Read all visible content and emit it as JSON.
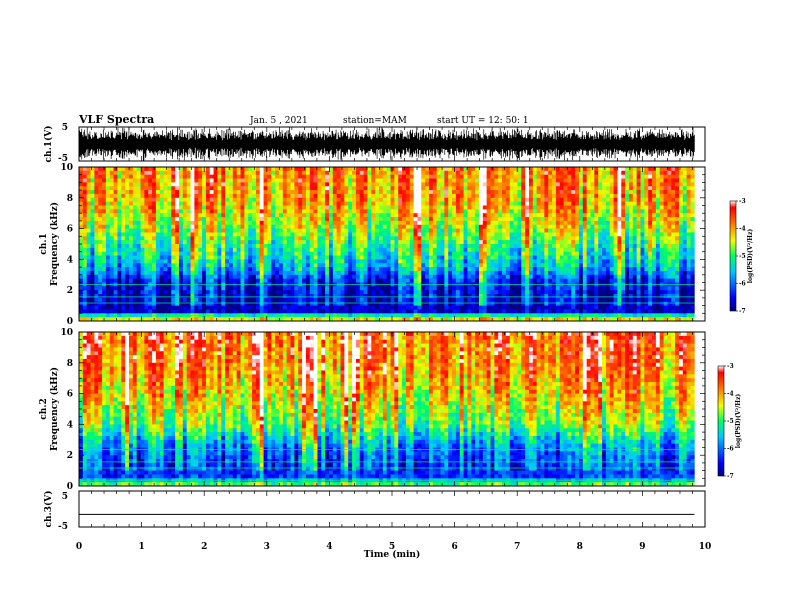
{
  "header": {
    "title": "VLF Spectra",
    "date": "Jan. 5 , 2021",
    "station": "station=MAM",
    "start": "start UT = 12: 50: 1"
  },
  "chart_data": [
    {
      "type": "line",
      "panel": "waveform-ch1",
      "ylabel": "ch.1(V)",
      "ylim": [
        -5,
        5
      ],
      "yticks": [
        "5",
        "-5"
      ],
      "xlim": [
        0,
        10
      ],
      "description_values": "dense broadband waveform between about -5 and 5 V"
    },
    {
      "type": "heatmap",
      "panel": "spectrogram-ch1",
      "ylabel_line1": "ch.1",
      "ylabel_line2": "Frequency (kHz)",
      "ylim": [
        0,
        10
      ],
      "yticks": [
        "0",
        "2",
        "4",
        "6",
        "8",
        "10"
      ],
      "xlim": [
        0,
        9.83
      ],
      "colorbar": {
        "label": "log(PSD)(V²/Hz)",
        "range": [
          -7,
          -3
        ],
        "ticks": [
          "-3",
          "-4",
          "-5",
          "-6",
          "-7"
        ]
      },
      "profile": [
        {
          "f": 0.0,
          "level": 0.72
        },
        {
          "f": 0.3,
          "level": 0.55
        },
        {
          "f": 0.6,
          "level": 0.06
        },
        {
          "f": 1.5,
          "level": 0.08
        },
        {
          "f": 2.6,
          "level": 0.14
        },
        {
          "f": 3.5,
          "level": 0.35
        },
        {
          "f": 5.0,
          "level": 0.5
        },
        {
          "f": 6.5,
          "level": 0.64
        },
        {
          "f": 8.0,
          "level": 0.74
        },
        {
          "f": 10.0,
          "level": 0.78
        }
      ]
    },
    {
      "type": "heatmap",
      "panel": "spectrogram-ch2",
      "ylabel_line1": "ch.2",
      "ylabel_line2": "Frequency (kHz)",
      "ylim": [
        0,
        10
      ],
      "yticks": [
        "0",
        "2",
        "4",
        "6",
        "8",
        "10"
      ],
      "xlim": [
        0,
        9.83
      ],
      "colorbar": {
        "label": "log(PSD)(V²/Hz)",
        "range": [
          -7,
          -3
        ],
        "ticks": [
          "-3",
          "-4",
          "-5",
          "-6",
          "-7"
        ]
      },
      "profile": [
        {
          "f": 0.0,
          "level": 0.6
        },
        {
          "f": 0.6,
          "level": 0.18
        },
        {
          "f": 1.5,
          "level": 0.2
        },
        {
          "f": 2.6,
          "level": 0.3
        },
        {
          "f": 4.0,
          "level": 0.55
        },
        {
          "f": 6.0,
          "level": 0.7
        },
        {
          "f": 8.0,
          "level": 0.8
        },
        {
          "f": 10.0,
          "level": 0.84
        }
      ]
    },
    {
      "type": "line",
      "panel": "waveform-ch3",
      "ylabel": "ch.3(V)",
      "ylim": [
        -5,
        5
      ],
      "yticks": [
        "5",
        "-5"
      ],
      "xlim": [
        0,
        10
      ],
      "constant_value": -1.5
    }
  ],
  "time_axis": {
    "label": "Time (min)",
    "ticks": [
      "0",
      "1",
      "2",
      "3",
      "4",
      "5",
      "6",
      "7",
      "8",
      "9",
      "10"
    ],
    "range": [
      0,
      10
    ]
  },
  "colors": {
    "frame": "#000000",
    "background": "#ffffff"
  }
}
